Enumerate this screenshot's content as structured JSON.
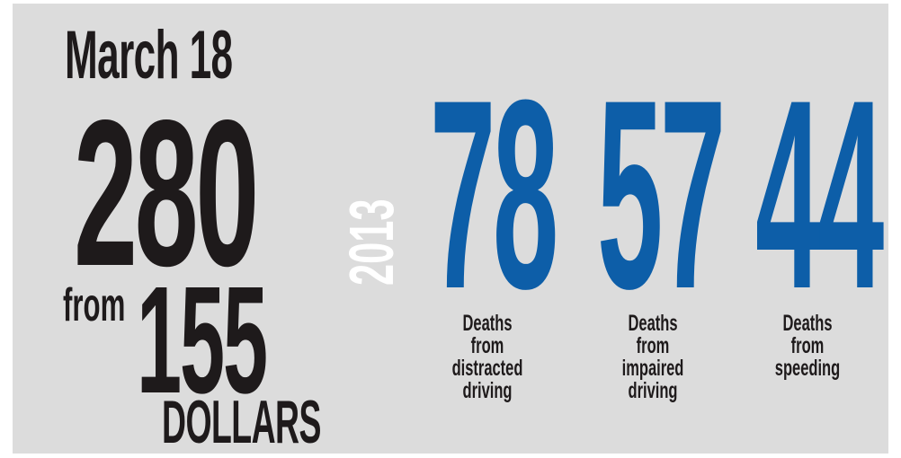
{
  "colors": {
    "background": "#dcdcdc",
    "dark_text": "#1e1a1b",
    "accent_blue": "#0d5ea8",
    "year_text": "#ffffff"
  },
  "left": {
    "date": "March 18",
    "big_number": "280",
    "from_label": "from",
    "second_number": "155",
    "unit": "DOLLARS"
  },
  "year": "2013",
  "stats": [
    {
      "value": "78",
      "caption": "Deaths from\ndistracted\ndriving"
    },
    {
      "value": "57",
      "caption": "Deaths from\nimpaired\ndriving"
    },
    {
      "value": "44",
      "caption": "Deaths from\nspeeding"
    }
  ]
}
